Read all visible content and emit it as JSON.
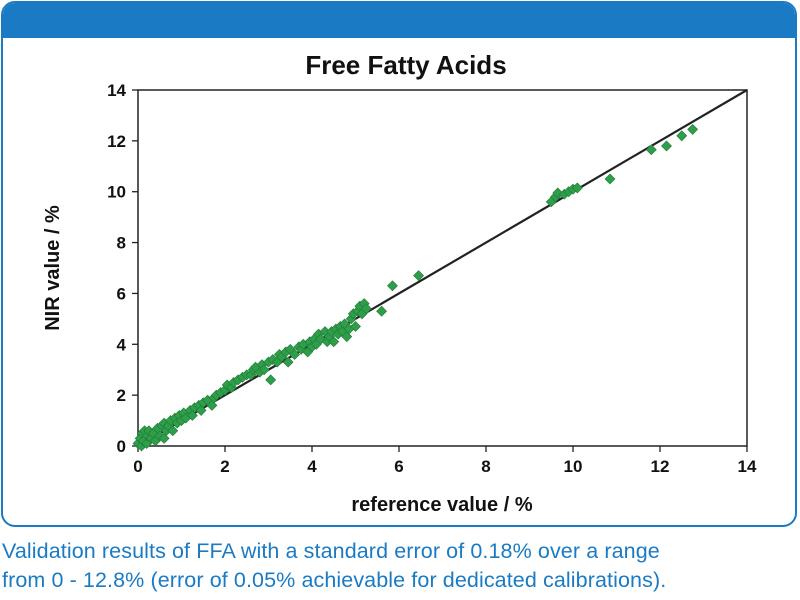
{
  "chart_data": {
    "type": "scatter",
    "title": "Free Fatty Acids",
    "xlabel": "reference value / %",
    "ylabel": "NIR value / %",
    "xlim": [
      0,
      14
    ],
    "ylim": [
      0,
      14
    ],
    "xticks": [
      0,
      2,
      4,
      6,
      8,
      10,
      12,
      14
    ],
    "yticks": [
      0,
      2,
      4,
      6,
      8,
      10,
      12,
      14
    ],
    "grid": false,
    "reference_line": {
      "from": [
        0,
        0
      ],
      "to": [
        14,
        14
      ]
    },
    "marker_color": "#2e9e4a",
    "line_color": "#222222",
    "series": [
      {
        "values": [
          [
            0.0,
            0.1
          ],
          [
            0.05,
            0.3
          ],
          [
            0.08,
            0.0
          ],
          [
            0.1,
            0.5
          ],
          [
            0.12,
            0.2
          ],
          [
            0.15,
            0.6
          ],
          [
            0.2,
            0.1
          ],
          [
            0.22,
            0.4
          ],
          [
            0.25,
            0.6
          ],
          [
            0.3,
            0.3
          ],
          [
            0.35,
            0.5
          ],
          [
            0.4,
            0.2
          ],
          [
            0.45,
            0.7
          ],
          [
            0.5,
            0.4
          ],
          [
            0.55,
            0.8
          ],
          [
            0.6,
            0.3
          ],
          [
            0.6,
            0.9
          ],
          [
            0.65,
            0.6
          ],
          [
            0.7,
            0.8
          ],
          [
            0.75,
            1.0
          ],
          [
            0.8,
            0.6
          ],
          [
            0.85,
            1.1
          ],
          [
            0.9,
            0.9
          ],
          [
            0.95,
            1.2
          ],
          [
            1.0,
            1.0
          ],
          [
            1.05,
            1.3
          ],
          [
            1.1,
            1.1
          ],
          [
            1.2,
            1.4
          ],
          [
            1.25,
            1.2
          ],
          [
            1.3,
            1.5
          ],
          [
            1.4,
            1.6
          ],
          [
            1.45,
            1.4
          ],
          [
            1.5,
            1.7
          ],
          [
            1.6,
            1.8
          ],
          [
            1.7,
            1.6
          ],
          [
            1.75,
            1.9
          ],
          [
            1.8,
            2.0
          ],
          [
            1.9,
            2.1
          ],
          [
            2.0,
            2.2
          ],
          [
            2.05,
            2.4
          ],
          [
            2.15,
            2.3
          ],
          [
            2.2,
            2.5
          ],
          [
            2.3,
            2.6
          ],
          [
            2.4,
            2.7
          ],
          [
            2.5,
            2.8
          ],
          [
            2.6,
            2.8
          ],
          [
            2.65,
            3.0
          ],
          [
            2.7,
            3.1
          ],
          [
            2.8,
            2.9
          ],
          [
            2.85,
            3.2
          ],
          [
            2.9,
            3.0
          ],
          [
            3.0,
            3.3
          ],
          [
            3.05,
            2.6
          ],
          [
            3.1,
            3.4
          ],
          [
            3.2,
            3.3
          ],
          [
            3.25,
            3.6
          ],
          [
            3.3,
            3.5
          ],
          [
            3.4,
            3.7
          ],
          [
            3.45,
            3.3
          ],
          [
            3.5,
            3.8
          ],
          [
            3.6,
            3.6
          ],
          [
            3.7,
            3.9
          ],
          [
            3.75,
            3.8
          ],
          [
            3.8,
            4.0
          ],
          [
            3.9,
            3.7
          ],
          [
            3.95,
            4.1
          ],
          [
            4.0,
            3.9
          ],
          [
            4.05,
            4.2
          ],
          [
            4.1,
            4.0
          ],
          [
            4.15,
            4.4
          ],
          [
            4.2,
            4.2
          ],
          [
            4.3,
            4.5
          ],
          [
            4.35,
            4.1
          ],
          [
            4.4,
            4.3
          ],
          [
            4.45,
            4.5
          ],
          [
            4.5,
            4.1
          ],
          [
            4.55,
            4.6
          ],
          [
            4.6,
            4.4
          ],
          [
            4.65,
            4.7
          ],
          [
            4.7,
            4.5
          ],
          [
            4.75,
            4.8
          ],
          [
            4.8,
            4.3
          ],
          [
            4.85,
            4.6
          ],
          [
            4.9,
            5.0
          ],
          [
            4.95,
            5.2
          ],
          [
            5.0,
            4.7
          ],
          [
            5.05,
            5.3
          ],
          [
            5.1,
            5.5
          ],
          [
            5.15,
            5.2
          ],
          [
            5.2,
            5.6
          ],
          [
            5.25,
            5.4
          ],
          [
            5.6,
            5.3
          ],
          [
            5.85,
            6.3
          ],
          [
            6.45,
            6.7
          ],
          [
            9.5,
            9.6
          ],
          [
            9.6,
            9.8
          ],
          [
            9.65,
            9.95
          ],
          [
            9.8,
            9.9
          ],
          [
            9.9,
            10.0
          ],
          [
            10.0,
            10.1
          ],
          [
            10.1,
            10.15
          ],
          [
            10.85,
            10.5
          ],
          [
            11.8,
            11.65
          ],
          [
            12.15,
            11.8
          ],
          [
            12.5,
            12.2
          ],
          [
            12.75,
            12.45
          ]
        ]
      }
    ]
  },
  "caption": {
    "line1": "Validation results of FFA with a standard error of 0.18% over a range",
    "line2": "from 0 - 12.8% (error of 0.05% achievable for dedicated calibrations)."
  }
}
